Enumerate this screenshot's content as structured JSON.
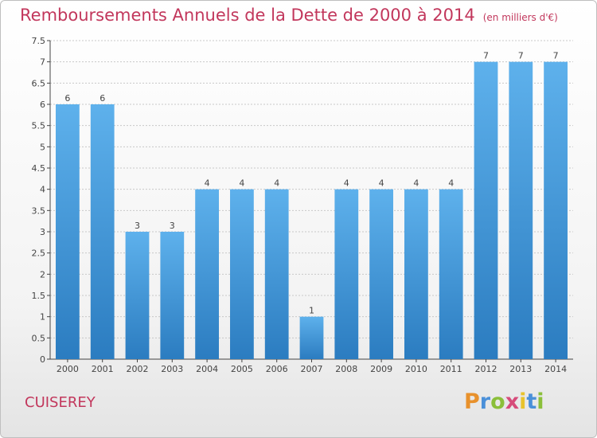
{
  "header": {
    "title": "Remboursements Annuels de la Dette de 2000 à 2014",
    "unit": "(en milliers d'€)"
  },
  "footer": {
    "commune": "CUISEREY",
    "logo_text": "Proxiti",
    "logo_colors": [
      "#e8912c",
      "#4a90d9",
      "#8bbf3a",
      "#d64b7a",
      "#e8c32c",
      "#4a90d9",
      "#8bbf3a"
    ]
  },
  "chart_data": {
    "type": "bar",
    "title": "Remboursements Annuels de la Dette de 2000 à 2014",
    "ylabel": "",
    "xlabel": "",
    "ylim": [
      0,
      7.5
    ],
    "yticks": [
      "0",
      "0.5",
      "1",
      "1.5",
      "2",
      "2.5",
      "3",
      "3.5",
      "4",
      "4.5",
      "5",
      "5.5",
      "6",
      "6.5",
      "7",
      "7.5"
    ],
    "yticks_values": [
      0,
      0.5,
      1,
      1.5,
      2,
      2.5,
      3,
      3.5,
      4,
      4.5,
      5,
      5.5,
      6,
      6.5,
      7,
      7.5
    ],
    "grid": true,
    "categories": [
      "2000",
      "2001",
      "2002",
      "2003",
      "2004",
      "2005",
      "2006",
      "2007",
      "2008",
      "2009",
      "2010",
      "2011",
      "2012",
      "2013",
      "2014"
    ],
    "values": [
      6,
      6,
      3,
      3,
      4,
      4,
      4,
      1,
      4,
      4,
      4,
      4,
      7,
      7,
      7
    ],
    "data_labels": [
      "6",
      "6",
      "3",
      "3",
      "4",
      "4",
      "4",
      "1",
      "4",
      "4",
      "4",
      "4",
      "7",
      "7",
      "7"
    ],
    "colors": {
      "bar_top": "#5eb1ec",
      "bar_bottom": "#2b7cc0",
      "title": "#c2375c",
      "axis": "#444444",
      "grid": "#c8c8c8"
    }
  }
}
